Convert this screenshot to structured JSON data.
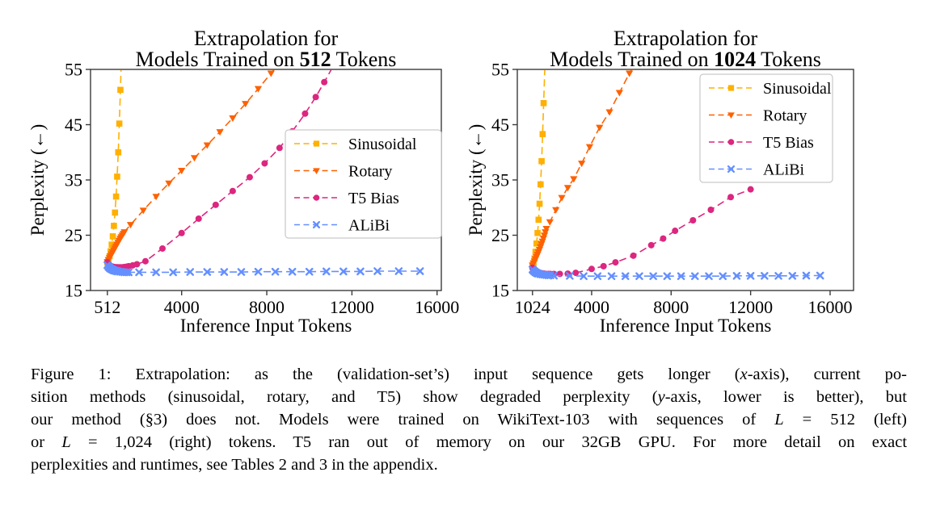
{
  "page": {
    "background": "#ffffff"
  },
  "figure_caption": {
    "lines": [
      {
        "justify": true,
        "segments": [
          {
            "t": "Figure 1: Extrapolation: as the (validation-set’s) input sequence gets longer ("
          },
          {
            "t": "x",
            "i": true
          },
          {
            "t": "-axis), current po-"
          }
        ]
      },
      {
        "justify": true,
        "segments": [
          {
            "t": "sition methods (sinusoidal, rotary, and T5) show degraded perplexity ("
          },
          {
            "t": "y",
            "i": true
          },
          {
            "t": "-axis, lower is better), but"
          }
        ]
      },
      {
        "justify": true,
        "segments": [
          {
            "t": "our method (§3) does not. Models were trained on WikiText-103 with sequences of "
          },
          {
            "t": "L",
            "i": true
          },
          {
            "t": " = 512 (left)"
          }
        ]
      },
      {
        "justify": true,
        "segments": [
          {
            "t": "or "
          },
          {
            "t": "L",
            "i": true
          },
          {
            "t": " = 1,024 (right) tokens. T5 ran out of memory on our 32GB GPU. For more detail on exact"
          }
        ]
      },
      {
        "justify": false,
        "segments": [
          {
            "t": "perplexities and runtimes, see Tables 2 and 3 in the appendix."
          }
        ]
      }
    ]
  },
  "chart_data": [
    {
      "type": "line",
      "title_line1": "Extrapolation for",
      "title_line2": [
        {
          "t": "Models Trained on "
        },
        {
          "t": "512",
          "b": true
        },
        {
          "t": " Tokens"
        }
      ],
      "xlabel": "Inference Input Tokens",
      "ylabel": "Perplexity (←)",
      "xlim": [
        -280,
        16200
      ],
      "ylim": [
        15,
        55
      ],
      "xticks": [
        {
          "value": 512,
          "label": "512"
        },
        {
          "value": 4000,
          "label": "4000"
        },
        {
          "value": 8000,
          "label": "8000"
        },
        {
          "value": 12000,
          "label": "12000"
        },
        {
          "value": 16000,
          "label": "16000"
        }
      ],
      "yticks": [
        {
          "value": 15,
          "label": "15"
        },
        {
          "value": 25,
          "label": "25"
        },
        {
          "value": 35,
          "label": "35"
        },
        {
          "value": 45,
          "label": "45"
        },
        {
          "value": 55,
          "label": "55"
        }
      ],
      "grid": false,
      "legend_position": "center-right",
      "series": [
        {
          "name": "Sinusoidal",
          "color": "#FFB000",
          "marker": "square",
          "line_style": "dashed",
          "x": [
            512,
            563,
            614,
            665,
            716,
            767,
            818,
            869,
            920,
            971,
            1022,
            1073,
            1124,
            1175
          ],
          "y": [
            20.0,
            20.5,
            21.2,
            22.1,
            23.3,
            24.8,
            26.7,
            29.1,
            32.0,
            35.6,
            40.0,
            45.2,
            51.3,
            58.0
          ]
        },
        {
          "name": "Rotary",
          "color": "#FE6100",
          "marker": "triangle-down",
          "line_style": "dashed",
          "x": [
            512,
            562,
            612,
            662,
            712,
            762,
            812,
            862,
            912,
            962,
            1012,
            1062,
            1112,
            1162,
            1212,
            1262,
            1312,
            1600,
            2200,
            2800,
            3400,
            4000,
            4600,
            5200,
            5800,
            6400,
            7000,
            7600,
            8200,
            8650
          ],
          "y": [
            20.2,
            20.55,
            20.9,
            21.25,
            21.6,
            21.95,
            22.3,
            22.65,
            23.0,
            23.35,
            23.7,
            24.05,
            24.4,
            24.7,
            25.0,
            25.3,
            25.6,
            26.9,
            29.5,
            32.0,
            34.4,
            36.7,
            39.0,
            41.3,
            43.7,
            46.2,
            48.8,
            51.5,
            54.3,
            56.5
          ]
        },
        {
          "name": "T5 Bias",
          "color": "#DC267F",
          "marker": "circle",
          "line_style": "dashed",
          "x": [
            512,
            562,
            612,
            662,
            712,
            762,
            812,
            862,
            912,
            962,
            1012,
            1112,
            1212,
            1312,
            1412,
            1512,
            1700,
            1900,
            2300,
            3100,
            4000,
            4800,
            5600,
            6400,
            7200,
            7900,
            8600,
            9200,
            9800,
            10300,
            10700,
            11150
          ],
          "y": [
            20.1,
            19.8,
            19.6,
            19.45,
            19.35,
            19.3,
            19.25,
            19.2,
            19.2,
            19.2,
            19.2,
            19.2,
            19.2,
            19.25,
            19.3,
            19.4,
            19.55,
            19.75,
            20.3,
            22.6,
            25.4,
            28.0,
            30.5,
            33.0,
            35.5,
            38.0,
            40.8,
            43.8,
            47.0,
            50.0,
            52.7,
            55.8
          ]
        },
        {
          "name": "ALiBi",
          "color": "#648FFF",
          "marker": "x",
          "line_style": "dashed",
          "x": [
            512,
            562,
            612,
            662,
            712,
            762,
            812,
            862,
            912,
            962,
            1012,
            1112,
            1212,
            1312,
            1412,
            1512,
            2000,
            2800,
            3600,
            4400,
            5200,
            6000,
            6800,
            7600,
            8400,
            9200,
            10000,
            10800,
            11600,
            12400,
            13200,
            14200,
            15200
          ],
          "y": [
            19.6,
            19.3,
            19.1,
            18.95,
            18.85,
            18.75,
            18.65,
            18.6,
            18.55,
            18.5,
            18.45,
            18.4,
            18.35,
            18.3,
            18.3,
            18.3,
            18.3,
            18.3,
            18.3,
            18.35,
            18.35,
            18.35,
            18.35,
            18.4,
            18.4,
            18.4,
            18.4,
            18.45,
            18.45,
            18.45,
            18.5,
            18.5,
            18.5
          ]
        }
      ]
    },
    {
      "type": "line",
      "title_line1": "Extrapolation for",
      "title_line2": [
        {
          "t": "Models Trained on "
        },
        {
          "t": "1024",
          "b": true
        },
        {
          "t": " Tokens"
        }
      ],
      "xlabel": "Inference Input Tokens",
      "ylabel": "Perplexity (←)",
      "xlim": [
        260,
        17180
      ],
      "ylim": [
        15,
        55
      ],
      "xticks": [
        {
          "value": 1024,
          "label": "1024"
        },
        {
          "value": 4000,
          "label": "4000"
        },
        {
          "value": 8000,
          "label": "8000"
        },
        {
          "value": 12000,
          "label": "12000"
        },
        {
          "value": 16000,
          "label": "16000"
        }
      ],
      "yticks": [
        {
          "value": 15,
          "label": "15"
        },
        {
          "value": 25,
          "label": "25"
        },
        {
          "value": 35,
          "label": "35"
        },
        {
          "value": 45,
          "label": "45"
        },
        {
          "value": 55,
          "label": "55"
        }
      ],
      "grid": false,
      "legend_position": "top-right",
      "series": [
        {
          "name": "Sinusoidal",
          "color": "#FFB000",
          "marker": "square",
          "line_style": "dashed",
          "x": [
            1024,
            1075,
            1126,
            1177,
            1228,
            1279,
            1330,
            1381,
            1432,
            1483,
            1534,
            1585,
            1650
          ],
          "y": [
            19.3,
            19.9,
            20.8,
            22.0,
            23.5,
            25.4,
            27.8,
            30.7,
            34.2,
            38.4,
            43.3,
            48.9,
            56.0
          ]
        },
        {
          "name": "Rotary",
          "color": "#FE6100",
          "marker": "triangle-down",
          "line_style": "dashed",
          "x": [
            1024,
            1074,
            1124,
            1174,
            1224,
            1274,
            1324,
            1374,
            1424,
            1474,
            1524,
            1574,
            1624,
            1674,
            1724,
            1900,
            2200,
            2500,
            2800,
            3100,
            3500,
            3900,
            4400,
            4900,
            5400,
            5900,
            6250
          ],
          "y": [
            19.6,
            19.95,
            20.3,
            20.7,
            21.1,
            21.5,
            21.95,
            22.4,
            22.9,
            23.4,
            23.9,
            24.45,
            25.0,
            25.6,
            26.2,
            27.4,
            29.6,
            31.8,
            33.6,
            35.2,
            38.0,
            41.0,
            44.5,
            47.3,
            50.8,
            54.3,
            56.5
          ]
        },
        {
          "name": "T5 Bias",
          "color": "#DC267F",
          "marker": "circle",
          "line_style": "dashed",
          "x": [
            1024,
            1074,
            1124,
            1174,
            1224,
            1274,
            1324,
            1424,
            1524,
            1624,
            1724,
            1824,
            1924,
            2100,
            2400,
            2800,
            3200,
            4000,
            4600,
            5200,
            6100,
            7000,
            7600,
            8200,
            9100,
            10000,
            11000,
            12000
          ],
          "y": [
            19.1,
            18.85,
            18.65,
            18.5,
            18.4,
            18.3,
            18.25,
            18.15,
            18.1,
            18.05,
            18.0,
            18.0,
            18.0,
            18.0,
            18.0,
            18.05,
            18.2,
            18.9,
            19.4,
            20.1,
            21.3,
            23.2,
            24.4,
            25.8,
            27.7,
            29.6,
            31.9,
            33.3
          ]
        },
        {
          "name": "ALiBi",
          "color": "#648FFF",
          "marker": "x",
          "line_style": "dashed",
          "x": [
            1024,
            1074,
            1124,
            1174,
            1224,
            1274,
            1324,
            1424,
            1524,
            1624,
            1724,
            1824,
            1924,
            2100,
            2900,
            3600,
            4300,
            5000,
            5700,
            6400,
            7100,
            7800,
            8500,
            9200,
            9900,
            10600,
            11300,
            12000,
            12700,
            13400,
            14100,
            14800,
            15500
          ],
          "y": [
            18.8,
            18.6,
            18.45,
            18.3,
            18.2,
            18.1,
            18.05,
            17.95,
            17.9,
            17.85,
            17.8,
            17.75,
            17.75,
            17.7,
            17.65,
            17.6,
            17.6,
            17.6,
            17.6,
            17.6,
            17.6,
            17.6,
            17.6,
            17.6,
            17.6,
            17.6,
            17.65,
            17.65,
            17.65,
            17.65,
            17.65,
            17.7,
            17.7
          ]
        }
      ]
    }
  ]
}
